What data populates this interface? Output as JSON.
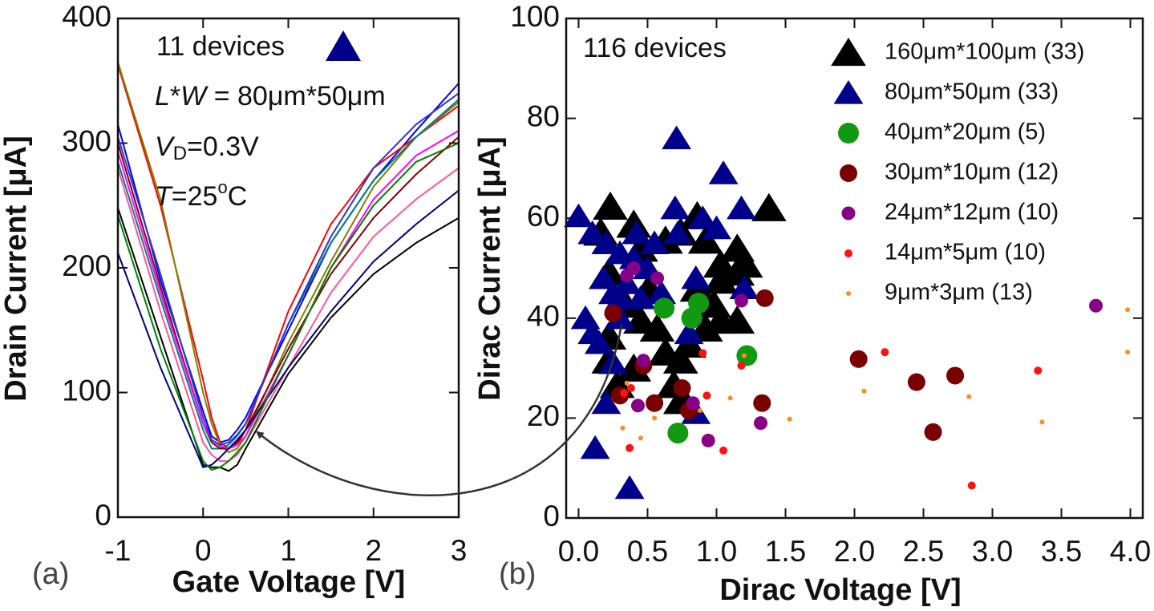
{
  "chart_data": [
    {
      "type": "line",
      "xlabel": "Gate Voltage [V]",
      "ylabel": "Drain Current [μA]",
      "panel_label": "(a)",
      "annotations": [
        [
          "11 devices"
        ],
        [
          "L",
          "*",
          "W",
          " = 80μm*50μm"
        ],
        [
          "V",
          "D",
          "=0.3V"
        ],
        [
          "T",
          "=25",
          "o",
          "C"
        ]
      ],
      "xlim": [
        -1,
        3
      ],
      "ylim": [
        0,
        400
      ],
      "xticks": [
        -1,
        0,
        1,
        2,
        3
      ],
      "yticks": [
        0,
        100,
        200,
        300,
        400
      ],
      "x": [
        -1,
        -0.5,
        0,
        0.1,
        0.2,
        0.3,
        0.4,
        0.5,
        1,
        1.5,
        2,
        2.5,
        3
      ],
      "series": [
        {
          "color": "#0000ff",
          "values": [
            315,
            190,
            85,
            65,
            60,
            62,
            70,
            80,
            150,
            220,
            270,
            310,
            348
          ]
        },
        {
          "color": "#ff0000",
          "values": [
            363,
            250,
            110,
            80,
            60,
            55,
            58,
            70,
            165,
            235,
            280,
            305,
            330
          ]
        },
        {
          "color": "#808000",
          "values": [
            365,
            255,
            100,
            75,
            58,
            52,
            55,
            65,
            140,
            205,
            265,
            305,
            333
          ]
        },
        {
          "color": "#008080",
          "values": [
            285,
            175,
            70,
            55,
            55,
            58,
            65,
            75,
            155,
            220,
            270,
            305,
            335
          ]
        },
        {
          "color": "#800000",
          "values": [
            300,
            185,
            75,
            60,
            55,
            55,
            60,
            70,
            135,
            195,
            240,
            275,
            305
          ]
        },
        {
          "color": "#ff00ff",
          "values": [
            293,
            180,
            75,
            62,
            57,
            55,
            58,
            65,
            130,
            200,
            255,
            290,
            310
          ]
        },
        {
          "color": "#ff5599",
          "values": [
            280,
            165,
            60,
            50,
            45,
            45,
            50,
            60,
            120,
            180,
            225,
            255,
            280
          ]
        },
        {
          "color": "#000000",
          "values": [
            248,
            145,
            42,
            40,
            40,
            37,
            42,
            55,
            115,
            160,
            195,
            220,
            240
          ]
        },
        {
          "color": "#000080",
          "values": [
            212,
            120,
            40,
            42,
            48,
            55,
            62,
            70,
            120,
            165,
            205,
            235,
            262
          ]
        },
        {
          "color": "#008000",
          "values": [
            242,
            135,
            45,
            38,
            40,
            45,
            52,
            60,
            130,
            200,
            250,
            285,
            300
          ]
        },
        {
          "color": "#3333cc",
          "values": [
            305,
            195,
            80,
            62,
            58,
            60,
            66,
            75,
            155,
            225,
            280,
            315,
            340
          ]
        }
      ]
    },
    {
      "type": "scatter",
      "xlabel": "Dirac Voltage [V]",
      "ylabel": "Dirac Current [μA]",
      "panel_label": "(b)",
      "annotation": "116 devices",
      "xlim": [
        -0.09,
        4.09
      ],
      "ylim": [
        0,
        100
      ],
      "xticks": [
        {
          "value": 0,
          "label": "0.0"
        },
        0.5,
        {
          "value": 1,
          "label": "1.0"
        },
        1.5,
        {
          "value": 2,
          "label": "2.0"
        },
        2.5,
        {
          "value": 3,
          "label": "3.0"
        },
        3.5,
        {
          "value": 4,
          "label": "4.0"
        }
      ],
      "yticks": [
        0,
        20,
        40,
        60,
        80,
        100
      ],
      "series": [
        {
          "name": "160μm*100μm (33)",
          "color": "#000000",
          "marker": "triangle",
          "x": [
            0.23,
            0.16,
            0.4,
            0.45,
            0.22,
            0.63,
            0.74,
            0.86,
            0.92,
            1.03,
            1.15,
            1.38,
            0.34,
            0.45,
            0.57,
            0.63,
            0.74,
            0.8,
            0.92,
            1.03,
            1.15,
            0.22,
            0.28,
            0.4,
            0.69,
            0.74,
            0.51,
            0.86,
            1.03,
            1.15,
            1.21,
            0.98,
            0.22
          ],
          "values": [
            62.3,
            57.1,
            58.7,
            53.9,
            49.1,
            55.5,
            57.1,
            60.4,
            55.5,
            50.7,
            53.9,
            62.0,
            42.7,
            39.5,
            37.9,
            33.1,
            31.5,
            34.7,
            37.9,
            39.5,
            39.5,
            31.5,
            26.6,
            29.9,
            26.6,
            23.4,
            45.9,
            45.9,
            47.5,
            49.1,
            50.7,
            42.7,
            36.3
          ]
        },
        {
          "name": "80μm*50μm (33)",
          "color": "#00008b",
          "marker": "triangle",
          "x": [
            0.0,
            0.1,
            0.2,
            0.3,
            0.4,
            0.5,
            0.35,
            0.25,
            0.3,
            0.05,
            0.1,
            0.15,
            0.25,
            0.2,
            0.12,
            0.37,
            0.71,
            1.05,
            0.7,
            0.72,
            0.9,
            1.0,
            1.18,
            0.85,
            1.2,
            0.45,
            0.6,
            0.8,
            0.85,
            0.55,
            0.42,
            0.3,
            0.18
          ],
          "values": [
            60.4,
            57,
            55,
            53,
            52,
            50,
            47,
            45,
            44,
            40,
            37,
            35,
            31,
            23,
            14,
            6,
            76,
            69,
            62,
            57,
            60,
            58,
            62,
            48,
            46,
            44,
            45,
            37,
            21,
            55,
            57,
            40,
            48
          ]
        },
        {
          "name": "40μm*20μm (5)",
          "color": "#119911",
          "marker": "circle",
          "x": [
            0.62,
            0.87,
            0.82,
            1.22,
            0.72
          ],
          "values": [
            42,
            43,
            40,
            32.5,
            17
          ]
        },
        {
          "name": "30μm*10μm (12)",
          "color": "#7a0000",
          "marker": "circle",
          "x": [
            0.25,
            0.47,
            0.3,
            0.55,
            0.75,
            0.8,
            1.35,
            1.33,
            2.03,
            2.45,
            2.57,
            2.73
          ],
          "values": [
            41,
            30.5,
            24.5,
            23,
            26,
            21.5,
            44,
            23,
            31.8,
            27.2,
            17.2,
            28.5
          ]
        },
        {
          "name": "24μm*12μm (10)",
          "color": "#880088",
          "marker": "circle",
          "x": [
            0.35,
            0.4,
            0.57,
            0.47,
            0.43,
            0.83,
            0.94,
            1.18,
            1.32,
            3.75
          ],
          "values": [
            48.5,
            50,
            48,
            31.5,
            22.5,
            23,
            15.5,
            43.5,
            19,
            42.5
          ]
        },
        {
          "name": "14μm*5μm (10)",
          "color": "#ff1111",
          "marker": "circle",
          "x": [
            0.33,
            0.38,
            0.37,
            0.9,
            0.93,
            1.05,
            1.18,
            2.22,
            3.33,
            2.85
          ],
          "values": [
            25,
            26,
            14,
            33,
            24.5,
            13.5,
            30.5,
            33.2,
            29.5,
            6.5
          ]
        },
        {
          "name": "9μm*3μm (13)",
          "color": "#ff8c1a",
          "marker": "circle",
          "x": [
            0.35,
            0.55,
            0.32,
            0.88,
            1.1,
            1.2,
            1.53,
            2.07,
            2.83,
            3.36,
            3.98,
            3.98,
            0.45
          ],
          "values": [
            27,
            20,
            18,
            21.5,
            24,
            32.5,
            19.8,
            25.4,
            24.3,
            19.2,
            41.7,
            33.2,
            16
          ]
        }
      ]
    }
  ]
}
